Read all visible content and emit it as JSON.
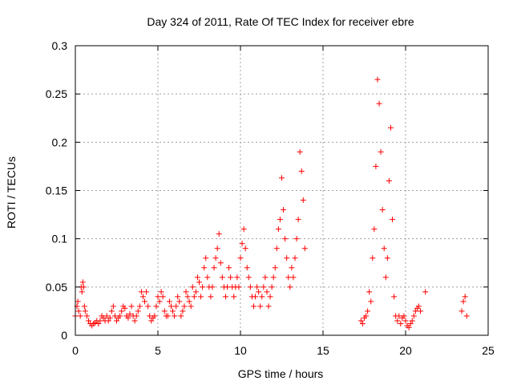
{
  "chart_data": {
    "type": "scatter",
    "title": "Day 324 of 2011, Rate Of TEC Index for receiver ebre",
    "xlabel": "GPS time / hours",
    "ylabel": "ROTI / TECUs",
    "xlim": [
      0,
      25
    ],
    "ylim": [
      0,
      0.3
    ],
    "x_ticks": [
      0,
      5,
      10,
      15,
      20,
      25
    ],
    "y_ticks": [
      0,
      0.05,
      0.1,
      0.15,
      0.2,
      0.25,
      0.3
    ],
    "x_tick_labels": [
      "0",
      "5",
      "10",
      "15",
      "20",
      "25"
    ],
    "y_tick_labels": [
      "0",
      "0.05",
      "0.1",
      "0.15",
      "0.2",
      "0.25",
      "0.3"
    ],
    "grid": true,
    "legend": false,
    "marker": "plus",
    "color": "#ff0000",
    "series": [
      {
        "x": [
          0.0,
          0.1,
          0.15,
          0.2,
          0.3,
          0.35,
          0.4,
          0.45,
          0.5,
          0.55,
          0.6,
          0.7,
          0.8,
          0.9,
          1.0,
          1.1,
          1.2,
          1.3,
          1.4,
          1.5,
          1.6,
          1.7,
          1.8,
          1.9,
          2.0,
          2.1,
          2.2,
          2.3,
          2.4,
          2.5,
          2.6,
          2.7,
          2.8,
          2.9,
          3.0,
          3.1,
          3.2,
          3.3,
          3.4,
          3.5,
          3.6,
          3.7,
          3.8,
          3.9,
          4.0,
          4.1,
          4.2,
          4.3,
          4.4,
          4.5,
          4.6,
          4.7,
          4.8,
          4.9,
          5.0,
          5.1,
          5.2,
          5.3,
          5.4,
          5.5,
          5.6,
          5.7,
          5.8,
          5.9,
          6.0,
          6.1,
          6.2,
          6.3,
          6.4,
          6.5,
          6.6,
          6.7,
          6.8,
          6.9,
          7.0,
          7.1,
          7.2,
          7.3,
          7.4,
          7.5,
          7.6,
          7.7,
          7.8,
          7.9,
          8.0,
          8.1,
          8.2,
          8.3,
          8.4,
          8.5,
          8.6,
          8.7,
          8.8,
          8.9,
          9.0,
          9.1,
          9.2,
          9.3,
          9.4,
          9.5,
          9.6,
          9.7,
          9.8,
          9.9,
          10.0,
          10.1,
          10.2,
          10.3,
          10.4,
          10.5,
          10.6,
          10.7,
          10.8,
          10.9,
          11.0,
          11.1,
          11.2,
          11.3,
          11.4,
          11.5,
          11.6,
          11.7,
          11.8,
          11.9,
          12.0,
          12.1,
          12.2,
          12.3,
          12.4,
          12.5,
          12.6,
          12.7,
          12.8,
          12.9,
          13.0,
          13.1,
          13.2,
          13.3,
          13.4,
          13.5,
          13.6,
          13.7,
          13.8,
          13.9,
          17.3,
          17.4,
          17.5,
          17.6,
          17.7,
          17.8,
          17.9,
          18.0,
          18.1,
          18.2,
          18.3,
          18.4,
          18.5,
          18.6,
          18.7,
          18.8,
          18.9,
          19.0,
          19.1,
          19.2,
          19.3,
          19.4,
          19.5,
          19.6,
          19.7,
          19.8,
          19.9,
          20.0,
          20.1,
          20.2,
          20.3,
          20.4,
          20.5,
          20.6,
          20.7,
          20.8,
          20.9,
          21.2,
          23.4,
          23.5,
          23.6,
          23.7
        ],
        "y": [
          0.02,
          0.03,
          0.035,
          0.025,
          0.02,
          0.05,
          0.045,
          0.055,
          0.05,
          0.03,
          0.025,
          0.02,
          0.015,
          0.012,
          0.01,
          0.012,
          0.013,
          0.015,
          0.012,
          0.015,
          0.02,
          0.018,
          0.015,
          0.02,
          0.015,
          0.018,
          0.025,
          0.03,
          0.02,
          0.015,
          0.018,
          0.02,
          0.025,
          0.03,
          0.028,
          0.02,
          0.018,
          0.022,
          0.03,
          0.02,
          0.015,
          0.02,
          0.025,
          0.03,
          0.045,
          0.04,
          0.035,
          0.045,
          0.03,
          0.02,
          0.015,
          0.018,
          0.02,
          0.03,
          0.04,
          0.035,
          0.045,
          0.04,
          0.025,
          0.02,
          0.02,
          0.035,
          0.03,
          0.025,
          0.02,
          0.03,
          0.04,
          0.035,
          0.02,
          0.025,
          0.03,
          0.045,
          0.04,
          0.035,
          0.03,
          0.05,
          0.04,
          0.045,
          0.06,
          0.055,
          0.04,
          0.05,
          0.07,
          0.08,
          0.06,
          0.05,
          0.04,
          0.05,
          0.07,
          0.08,
          0.09,
          0.105,
          0.075,
          0.06,
          0.05,
          0.04,
          0.05,
          0.07,
          0.06,
          0.05,
          0.04,
          0.05,
          0.06,
          0.05,
          0.08,
          0.095,
          0.11,
          0.09,
          0.07,
          0.06,
          0.05,
          0.04,
          0.03,
          0.04,
          0.05,
          0.045,
          0.03,
          0.04,
          0.05,
          0.06,
          0.045,
          0.03,
          0.04,
          0.05,
          0.06,
          0.07,
          0.09,
          0.11,
          0.12,
          0.163,
          0.13,
          0.1,
          0.08,
          0.06,
          0.05,
          0.07,
          0.06,
          0.08,
          0.1,
          0.12,
          0.19,
          0.17,
          0.14,
          0.09,
          0.015,
          0.012,
          0.018,
          0.02,
          0.025,
          0.045,
          0.035,
          0.08,
          0.11,
          0.175,
          0.265,
          0.24,
          0.19,
          0.13,
          0.09,
          0.06,
          0.08,
          0.16,
          0.215,
          0.12,
          0.04,
          0.02,
          0.015,
          0.02,
          0.012,
          0.018,
          0.02,
          0.015,
          0.01,
          0.008,
          0.012,
          0.015,
          0.02,
          0.025,
          0.028,
          0.03,
          0.025,
          0.045,
          0.025,
          0.035,
          0.04,
          0.02
        ]
      }
    ]
  }
}
